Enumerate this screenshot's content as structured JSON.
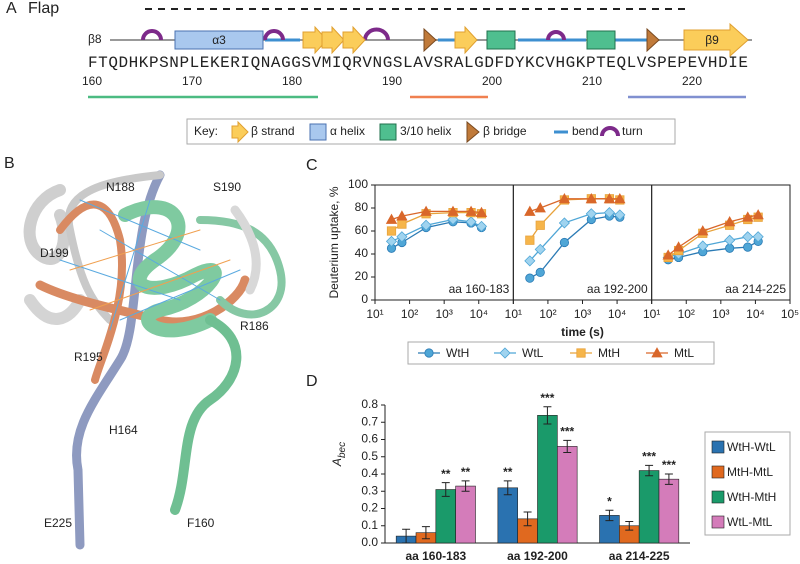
{
  "panel_a": {
    "label": "A",
    "flap": "Flap",
    "ss_labels": {
      "beta8": "β8",
      "alpha3": "α3",
      "beta9": "β9"
    },
    "sequence": "FTQDHKPSNPLEKERIQNAGGSVMIQRVNGSLAVSRALGDFDYKCVHGKPTEQLVSPEPEVHDIE",
    "numbers": [
      160,
      170,
      180,
      190,
      200,
      210,
      220
    ],
    "key": {
      "title": "Key:",
      "items": [
        "β strand",
        "α helix",
        "3/10 helix",
        "β bridge",
        "bend",
        "turn"
      ]
    }
  },
  "panel_b": {
    "label": "B",
    "residues": [
      "N188",
      "S190",
      "D199",
      "R186",
      "R195",
      "H164",
      "E225",
      "F160"
    ]
  },
  "panel_labels": {
    "c": "C",
    "d": "D"
  },
  "chart_data": [
    {
      "type": "line",
      "ylabel": "Deuterium uptake, %",
      "xlabel": "time (s)",
      "x": [
        30,
        60,
        300,
        1800,
        6000,
        12000
      ],
      "xlim": [
        10,
        100000
      ],
      "xticks": [
        {
          "value": 10,
          "label": "10¹"
        },
        {
          "value": 100,
          "label": "10²"
        },
        {
          "value": 1000,
          "label": "10³"
        },
        {
          "value": 10000,
          "label": "10⁴"
        },
        {
          "value": 100000,
          "label": "10⁵"
        }
      ],
      "log_x": true,
      "ylim": [
        0,
        100
      ],
      "yticks": [
        0,
        20,
        40,
        60,
        80,
        100
      ],
      "panels": [
        "aa 160-183",
        "aa 192-200",
        "aa 214-225"
      ],
      "series": [
        {
          "name": "WtH",
          "color": "#2b7bb5",
          "fill": "#4fa6d6",
          "marker": "circle",
          "values": [
            [
              45,
              50,
              63,
              68,
              67,
              63
            ],
            [
              19,
              24,
              50,
              70,
              73,
              72
            ],
            [
              35,
              37,
              42,
              45,
              46,
              51
            ]
          ]
        },
        {
          "name": "WtL",
          "color": "#4fa6d6",
          "fill": "#9fd3ef",
          "marker": "diamond",
          "values": [
            [
              51,
              55,
              65,
              70,
              68,
              64
            ],
            [
              34,
              44,
              67,
              75,
              76,
              74
            ],
            [
              37,
              40,
              47,
              52,
              55,
              55
            ]
          ]
        },
        {
          "name": "MtH",
          "color": "#e8a23a",
          "fill": "#f6b54a",
          "marker": "square",
          "values": [
            [
              60,
              66,
              75,
              76,
              76,
              75
            ],
            [
              52,
              65,
              87,
              88,
              88,
              87
            ],
            [
              37,
              43,
              58,
              65,
              70,
              72
            ]
          ]
        },
        {
          "name": "MtL",
          "color": "#d9672a",
          "fill": "#d9672a",
          "marker": "triangle",
          "values": [
            [
              70,
              73,
              77,
              77,
              77,
              76
            ],
            [
              77,
              80,
              88,
              88,
              88,
              88
            ],
            [
              39,
              46,
              60,
              68,
              72,
              74
            ]
          ]
        }
      ]
    },
    {
      "type": "bar",
      "ylabel": "A",
      "ylabel_sub": "bec",
      "categories": [
        "aa 160-183",
        "aa 192-200",
        "aa 214-225"
      ],
      "ylim": [
        0,
        0.8
      ],
      "yticks": [
        {
          "value": 0,
          "label": "0.0"
        },
        0.1,
        0.2,
        0.3,
        0.4,
        0.5,
        0.6,
        0.7,
        0.8
      ],
      "series": [
        {
          "name": "WtH-WtL",
          "color": "#2a72b0",
          "values": [
            0.04,
            0.32,
            0.16
          ],
          "errors": [
            0.04,
            0.04,
            0.03
          ],
          "significance": [
            null,
            "**",
            "*"
          ]
        },
        {
          "name": "MtH-MtL",
          "color": "#e0691f",
          "values": [
            0.06,
            0.14,
            0.1
          ],
          "errors": [
            0.035,
            0.04,
            0.025
          ],
          "significance": [
            null,
            null,
            null
          ]
        },
        {
          "name": "WtH-MtH",
          "color": "#1a9a6a",
          "values": [
            0.31,
            0.74,
            0.42
          ],
          "errors": [
            0.04,
            0.05,
            0.03
          ],
          "significance": [
            "**",
            "***",
            "***"
          ]
        },
        {
          "name": "WtL-MtL",
          "color": "#d47cba",
          "values": [
            0.33,
            0.56,
            0.37
          ],
          "errors": [
            0.03,
            0.035,
            0.03
          ],
          "significance": [
            "**",
            "***",
            "***"
          ]
        }
      ]
    }
  ]
}
